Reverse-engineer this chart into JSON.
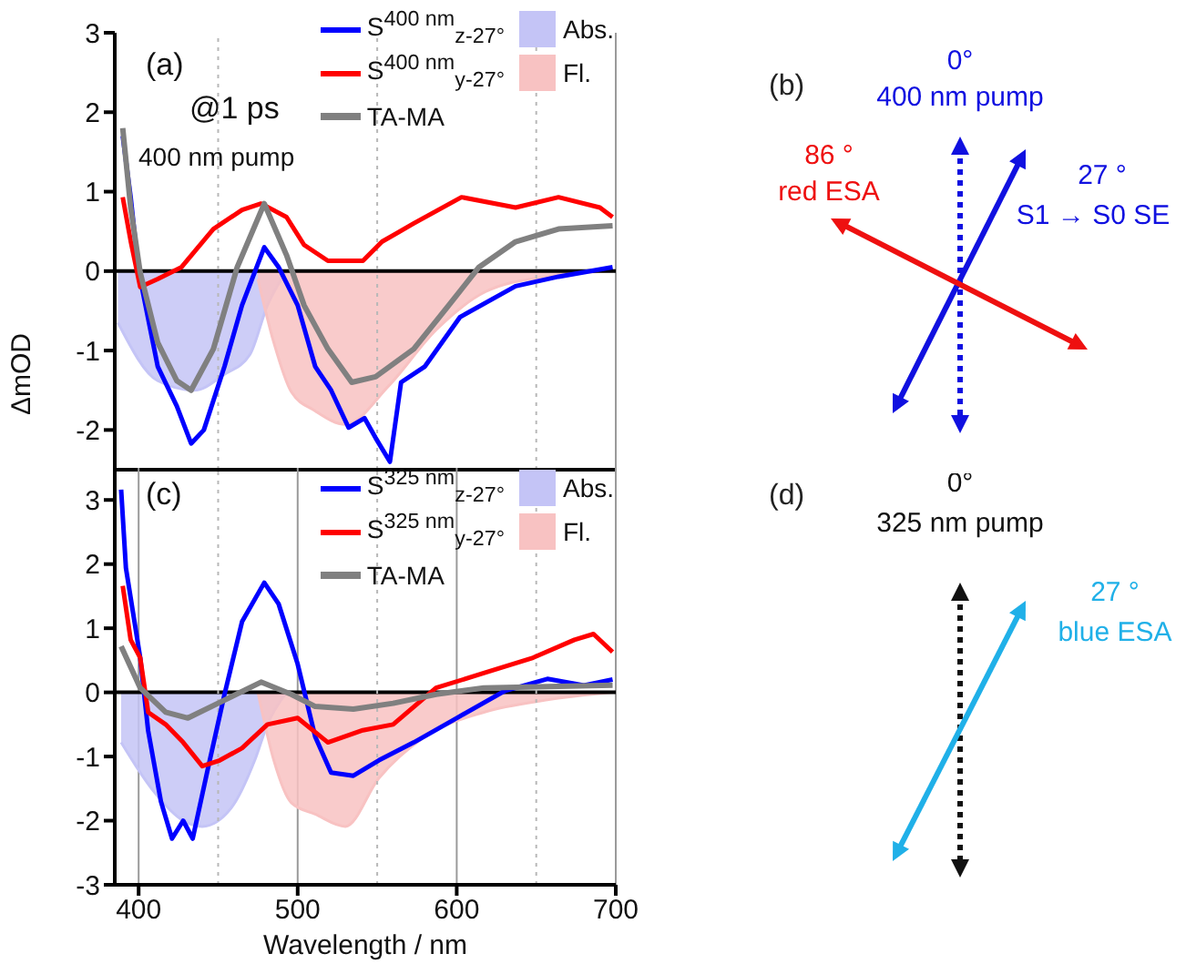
{
  "chart_data": [
    {
      "type": "line",
      "ylabel": "ΔmOD",
      "xlim": [
        385,
        700
      ],
      "xticks": [
        400,
        500,
        600,
        700
      ],
      "ylim": [
        -2.5,
        3
      ],
      "yticks": [
        -2,
        -1,
        0,
        1,
        2,
        3
      ],
      "tick_labels": "y",
      "grid": "x",
      "legend": "top right",
      "annotations": [
        "(a)",
        "@1 ps",
        "400 nm pump"
      ],
      "ref_lines": [
        {
          "axis": "y",
          "value": 0,
          "color": "#000000",
          "line_style": "solid"
        },
        {
          "axis": "x",
          "value": 450,
          "color": "#b8b8b8",
          "line_style": "dotted"
        },
        {
          "axis": "x",
          "value": 550,
          "color": "#b8b8b8",
          "line_style": "dotted"
        },
        {
          "axis": "x",
          "value": 650,
          "color": "#b8b8b8",
          "line_style": "dotted"
        }
      ],
      "series": [
        {
          "name": "Abs.",
          "type": "area",
          "color": "#c4c4f6",
          "x": [
            387,
            412,
            435,
            454,
            470,
            481,
            493
          ],
          "values": [
            -0.65,
            -1.38,
            -1.5,
            -1.3,
            -1.05,
            -0.43,
            0
          ]
        },
        {
          "name": "Fl.",
          "type": "area",
          "color": "#f8c2c2",
          "x": [
            475,
            485,
            496,
            511,
            530,
            557,
            587,
            618,
            656,
            698
          ],
          "values": [
            -0.1,
            -0.9,
            -1.52,
            -1.76,
            -1.93,
            -1.45,
            -0.74,
            -0.26,
            -0.07,
            0
          ]
        },
        {
          "name": "S$^{400 nm}$$_{z-27°}$",
          "type": "line",
          "color": "#0000ff",
          "x": [
            390,
            395,
            400,
            412,
            424,
            433,
            441,
            454,
            465,
            479,
            488,
            500,
            511,
            521,
            532,
            542,
            549,
            558,
            565,
            580,
            602,
            637,
            664,
            698
          ],
          "values": [
            1.7,
            0.93,
            0,
            -1.2,
            -1.7,
            -2.17,
            -2.0,
            -1.2,
            -0.43,
            0.3,
            0.05,
            -0.43,
            -1.2,
            -1.5,
            -1.97,
            -1.85,
            -2.1,
            -2.4,
            -1.4,
            -1.2,
            -0.58,
            -0.19,
            -0.07,
            0.05
          ]
        },
        {
          "name": "S$^{400 nm}$$_{y-27°}$",
          "type": "line",
          "color": "#ff0000",
          "x": [
            390,
            395,
            401,
            412,
            427,
            447,
            465,
            477,
            493,
            504,
            519,
            541,
            553,
            573,
            603,
            637,
            664,
            690,
            698
          ],
          "values": [
            0.93,
            0.38,
            -0.2,
            -0.1,
            0.05,
            0.53,
            0.77,
            0.85,
            0.68,
            0.33,
            0.13,
            0.13,
            0.37,
            0.6,
            0.93,
            0.8,
            0.93,
            0.8,
            0.68
          ]
        },
        {
          "name": "TA-MA",
          "type": "line",
          "color": "#808080",
          "x": [
            390,
            395,
            401,
            412,
            424,
            433,
            447,
            462,
            479,
            493,
            504,
            519,
            534,
            549,
            573,
            595,
            614,
            637,
            664,
            698
          ],
          "values": [
            1.8,
            0.8,
            -0.02,
            -0.9,
            -1.38,
            -1.5,
            -0.98,
            0.05,
            0.85,
            0.2,
            -0.43,
            -0.98,
            -1.4,
            -1.33,
            -0.98,
            -0.43,
            0.05,
            0.37,
            0.53,
            0.57
          ]
        }
      ]
    },
    {
      "type": "other",
      "annotations": [
        "(b)",
        "0°",
        "400 nm pump",
        "86 °",
        "red ESA",
        "27 °",
        "S1 → S0 SE"
      ]
    },
    {
      "type": "line",
      "xlabel": "Wavelength / nm",
      "xlim": [
        385,
        700
      ],
      "xticks": [
        400,
        500,
        600,
        700
      ],
      "ylim": [
        -3,
        3.5
      ],
      "yticks": [
        -3,
        -2,
        -1,
        0,
        1,
        2,
        3
      ],
      "grid": "x",
      "legend": "top right",
      "annotations": [
        "(c)"
      ],
      "ref_lines": [
        {
          "axis": "y",
          "value": 0,
          "color": "#000000",
          "line_style": "solid"
        },
        {
          "axis": "x",
          "value": 450,
          "color": "#b8b8b8",
          "line_style": "dotted"
        },
        {
          "axis": "x",
          "value": 550,
          "color": "#b8b8b8",
          "line_style": "dotted"
        },
        {
          "axis": "x",
          "value": 650,
          "color": "#b8b8b8",
          "line_style": "dotted"
        }
      ],
      "series": [
        {
          "name": "Abs.",
          "type": "area",
          "color": "#c4c4f6",
          "x": [
            389,
            409,
            428,
            440,
            458,
            473,
            481,
            493
          ],
          "values": [
            -0.78,
            -1.53,
            -2.0,
            -2.09,
            -1.81,
            -1.06,
            -0.5,
            0
          ]
        },
        {
          "name": "Fl.",
          "type": "area",
          "color": "#f8c2c2",
          "x": [
            475,
            485,
            496,
            511,
            530,
            551,
            580,
            617,
            656,
            698
          ],
          "values": [
            0,
            -1.06,
            -1.72,
            -1.9,
            -2.09,
            -1.34,
            -0.69,
            -0.31,
            -0.12,
            0
          ]
        },
        {
          "name": "S$^{325 nm}$$_{z-27°}$",
          "type": "line",
          "color": "#0000ff",
          "x": [
            389,
            392,
            401,
            406,
            414,
            421,
            428,
            434,
            443,
            454,
            465,
            479,
            488,
            500,
            511,
            521,
            535,
            551,
            573,
            600,
            630,
            657,
            680,
            698
          ],
          "values": [
            3.16,
            1.94,
            0.54,
            -0.6,
            -1.7,
            -2.28,
            -2.0,
            -2.28,
            -1.25,
            -0.03,
            1.1,
            1.71,
            1.38,
            0.44,
            -0.69,
            -1.25,
            -1.3,
            -1.06,
            -0.78,
            -0.4,
            0.02,
            0.21,
            0.11,
            0.2
          ]
        },
        {
          "name": "S$^{325 nm}$$_{y-27°}$",
          "type": "line",
          "color": "#ff0000",
          "x": [
            390,
            395,
            401,
            406,
            417,
            428,
            440,
            451,
            465,
            481,
            500,
            519,
            541,
            560,
            587,
            617,
            648,
            674,
            686,
            698
          ],
          "values": [
            1.66,
            0.82,
            0.54,
            -0.31,
            -0.5,
            -0.78,
            -1.15,
            -1.06,
            -0.87,
            -0.5,
            -0.4,
            -0.78,
            -0.59,
            -0.5,
            0.07,
            0.3,
            0.54,
            0.82,
            0.91,
            0.63
          ]
        },
        {
          "name": "TA-MA",
          "type": "line",
          "color": "#808080",
          "x": [
            389,
            401,
            417,
            431,
            454,
            477,
            496,
            511,
            535,
            560,
            587,
            617,
            698
          ],
          "values": [
            0.72,
            0.07,
            -0.31,
            -0.4,
            -0.12,
            0.16,
            -0.03,
            -0.22,
            -0.26,
            -0.17,
            -0.03,
            0.07,
            0.11
          ]
        }
      ]
    },
    {
      "type": "other",
      "annotations": [
        "(d)",
        "0°",
        "325 nm pump",
        "27 °",
        "blue ESA"
      ]
    }
  ]
}
